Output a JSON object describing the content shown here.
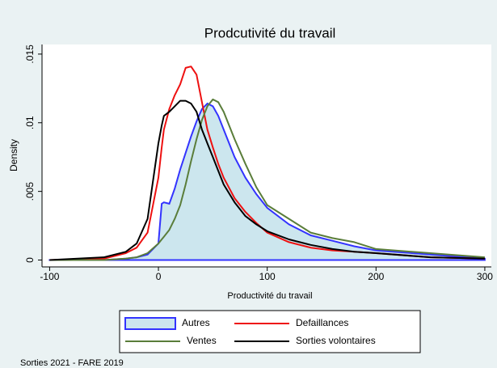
{
  "chart_data": {
    "type": "line",
    "title": "Prodcutivité du travail",
    "x_label": "Productivité du travail",
    "y_label": "Density",
    "note": "Sorties 2021 - FARE 2019",
    "x": [
      -100,
      -50,
      -30,
      -20,
      -10,
      0,
      3,
      5,
      10,
      15,
      20,
      25,
      30,
      35,
      40,
      45,
      50,
      55,
      60,
      70,
      80,
      90,
      100,
      120,
      140,
      160,
      180,
      200,
      250,
      300
    ],
    "series": [
      {
        "name": "Autres",
        "color": "#3333ff",
        "area": true,
        "fill": "#cce6ee",
        "values": [
          0,
          0,
          0.0001,
          0.0002,
          0.0004,
          0.0012,
          0.0041,
          0.0042,
          0.0041,
          0.0052,
          0.0066,
          0.0078,
          0.009,
          0.0101,
          0.011,
          0.0114,
          0.0112,
          0.0105,
          0.0095,
          0.0075,
          0.006,
          0.0048,
          0.0038,
          0.0026,
          0.0018,
          0.0014,
          0.001,
          0.0007,
          0.0004,
          0.0001
        ]
      },
      {
        "name": "Defaillances",
        "color": "#ee1111",
        "values": [
          0,
          0.0001,
          0.0005,
          0.0009,
          0.002,
          0.006,
          0.0082,
          0.0095,
          0.011,
          0.012,
          0.0128,
          0.014,
          0.0141,
          0.0135,
          0.0115,
          0.0095,
          0.0082,
          0.007,
          0.006,
          0.0045,
          0.0035,
          0.0027,
          0.002,
          0.0013,
          0.0009,
          0.0007,
          0.0006,
          0.0005,
          0.0002,
          0.0001
        ]
      },
      {
        "name": "Ventes",
        "color": "#5a7d3a",
        "values": [
          0,
          0,
          0.0001,
          0.0002,
          0.0005,
          0.0012,
          0.0015,
          0.0017,
          0.0022,
          0.003,
          0.004,
          0.0055,
          0.0072,
          0.0088,
          0.0102,
          0.0112,
          0.0117,
          0.0115,
          0.0108,
          0.0088,
          0.007,
          0.0053,
          0.004,
          0.003,
          0.002,
          0.0016,
          0.0013,
          0.0008,
          0.0005,
          0.0002
        ]
      },
      {
        "name": "Sorties volontaires",
        "color": "#000000",
        "values": [
          0,
          0.0002,
          0.0006,
          0.0012,
          0.003,
          0.0085,
          0.0098,
          0.0105,
          0.0108,
          0.0112,
          0.0116,
          0.0116,
          0.0114,
          0.0108,
          0.0095,
          0.0085,
          0.0075,
          0.0065,
          0.0055,
          0.0042,
          0.0032,
          0.0026,
          0.0021,
          0.0015,
          0.0011,
          0.0008,
          0.0006,
          0.0005,
          0.0002,
          0.0001
        ]
      }
    ],
    "xlim": [
      -107,
      306
    ],
    "ylim": [
      -0.0005,
      0.0157
    ],
    "xticks": [
      -100,
      0,
      100,
      200,
      300
    ],
    "yticks": [
      0,
      {
        "value": 0.005,
        "label": ".005"
      },
      {
        "value": 0.01,
        "label": ".01"
      },
      {
        "value": 0.015,
        "label": ".015"
      }
    ]
  }
}
